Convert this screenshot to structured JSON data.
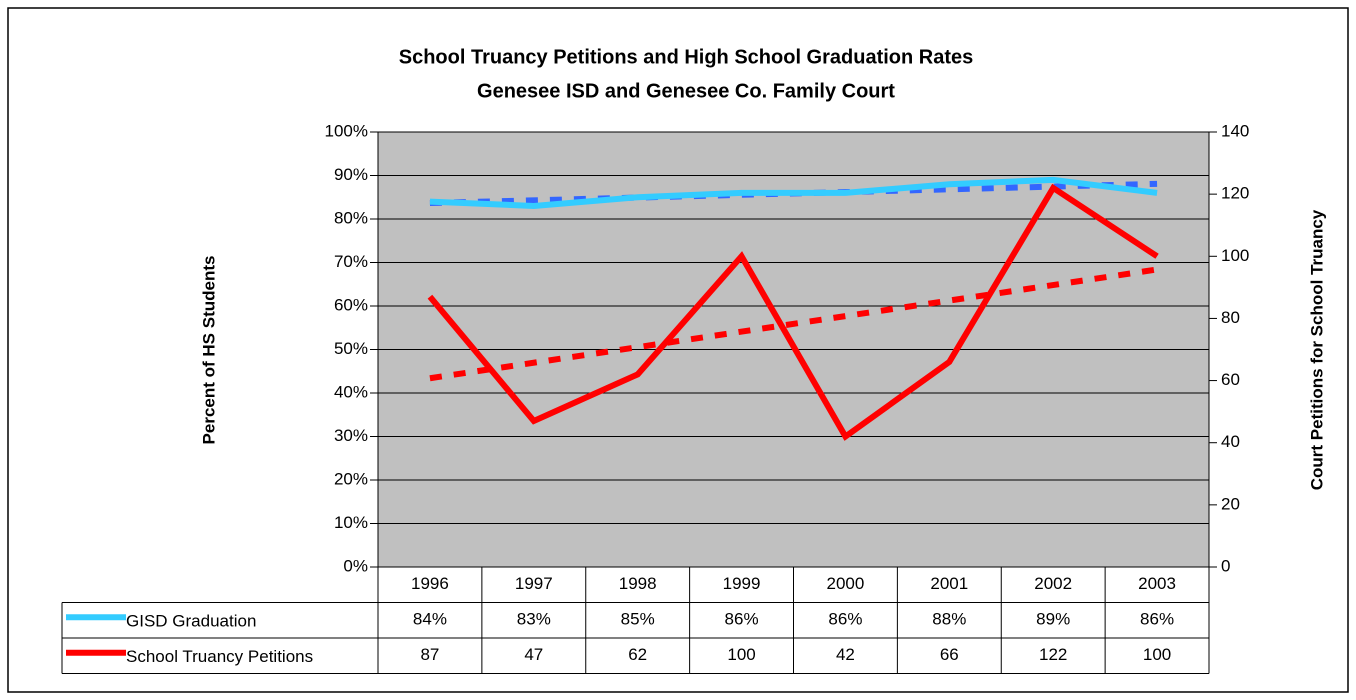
{
  "chart_data": {
    "type": "line",
    "title": "School Truancy Petitions and High School Graduation Rates",
    "subtitle": "Genesee ISD and Genesee Co. Family Court",
    "y_label": "Percent of HS Students",
    "y2_label": "Court Petitions for School Truancy",
    "categories": [
      "1996",
      "1997",
      "1998",
      "1999",
      "2000",
      "2001",
      "2002",
      "2003"
    ],
    "series": [
      {
        "name": "GISD Graduation",
        "color": "#33ccff",
        "trend_color": "#3366ff",
        "trendline": true,
        "values": [
          84,
          83,
          85,
          86,
          86,
          88,
          89,
          86
        ],
        "value_labels": [
          "84%",
          "83%",
          "85%",
          "86%",
          "86%",
          "88%",
          "89%",
          "86%"
        ]
      },
      {
        "name": "School Truancy Petitions",
        "color": "#ff0000",
        "trend_color": "#ff0000",
        "trendline": true,
        "axis": "y2",
        "values": [
          87,
          47,
          62,
          100,
          42,
          66,
          122,
          100
        ]
      }
    ],
    "ylim": [
      0,
      100
    ],
    "yticks": [
      {
        "value": 0,
        "label": "0%"
      },
      {
        "value": 10,
        "label": "10%"
      },
      {
        "value": 20,
        "label": "20%"
      },
      {
        "value": 30,
        "label": "30%"
      },
      {
        "value": 40,
        "label": "40%"
      },
      {
        "value": 50,
        "label": "50%"
      },
      {
        "value": 60,
        "label": "60%"
      },
      {
        "value": 70,
        "label": "70%"
      },
      {
        "value": 80,
        "label": "80%"
      },
      {
        "value": 90,
        "label": "90%"
      },
      {
        "value": 100,
        "label": "100%"
      }
    ],
    "y2lim": [
      0,
      140
    ],
    "y2ticks": [
      0,
      20,
      40,
      60,
      80,
      100,
      120,
      140
    ],
    "grid": true,
    "data_table": true
  }
}
